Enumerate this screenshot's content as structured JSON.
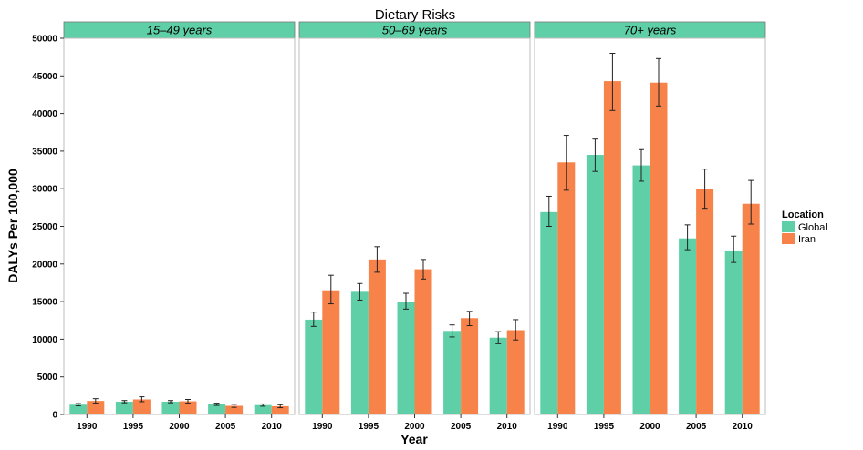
{
  "chart_data": {
    "type": "bar",
    "title": "Dietary Risks",
    "xlabel": "Year",
    "ylabel": "DALYs Per 100,000",
    "ylim": [
      0,
      50000
    ],
    "yticks": [
      0,
      5000,
      10000,
      15000,
      20000,
      25000,
      30000,
      35000,
      40000,
      45000,
      50000
    ],
    "ytick_labels": [
      "0",
      "5000",
      "10000",
      "15000",
      "20000",
      "25000",
      "30000",
      "35000",
      "40000",
      "45000",
      "50000"
    ],
    "categories": [
      "1990",
      "1995",
      "2000",
      "2005",
      "2010"
    ],
    "legend": {
      "title": "Location",
      "position": "right",
      "entries": [
        "Global",
        "Iran"
      ]
    },
    "grid": false,
    "panels": [
      {
        "label": "15–49 years",
        "series": [
          {
            "name": "Global",
            "values": [
              1300,
              1700,
              1700,
              1350,
              1250
            ],
            "err_low": [
              1150,
              1550,
              1550,
              1200,
              1100
            ],
            "err_high": [
              1450,
              1850,
              1850,
              1500,
              1400
            ]
          },
          {
            "name": "Iran",
            "values": [
              1800,
              2000,
              1750,
              1150,
              1100
            ],
            "err_low": [
              1500,
              1700,
              1500,
              950,
              900
            ],
            "err_high": [
              2100,
              2350,
              2000,
              1350,
              1300
            ]
          }
        ]
      },
      {
        "label": "50–69 years",
        "series": [
          {
            "name": "Global",
            "values": [
              12600,
              16300,
              15000,
              11100,
              10200
            ],
            "err_low": [
              11700,
              15200,
              14000,
              10300,
              9400
            ],
            "err_high": [
              13600,
              17400,
              16100,
              11900,
              11000
            ]
          },
          {
            "name": "Iran",
            "values": [
              16500,
              20600,
              19300,
              12800,
              11200
            ],
            "err_low": [
              14700,
              18900,
              18000,
              11800,
              9900
            ],
            "err_high": [
              18500,
              22300,
              20600,
              13700,
              12600
            ]
          }
        ]
      },
      {
        "label": "70+ years",
        "series": [
          {
            "name": "Global",
            "values": [
              26900,
              34500,
              33100,
              23400,
              21800
            ],
            "err_low": [
              25000,
              32300,
              31000,
              21900,
              20200
            ],
            "err_high": [
              29000,
              36600,
              35200,
              25200,
              23700
            ]
          },
          {
            "name": "Iran",
            "values": [
              33500,
              44300,
              44100,
              30000,
              28000
            ],
            "err_low": [
              29800,
              40400,
              41000,
              27400,
              25300
            ],
            "err_high": [
              37100,
              48000,
              47300,
              32600,
              31100
            ]
          }
        ]
      }
    ],
    "colors": {
      "Global": "#5ECFA7",
      "Iran": "#F8834A",
      "strip": "#5ECFA7",
      "panel_border": "#BDBDBD"
    }
  }
}
